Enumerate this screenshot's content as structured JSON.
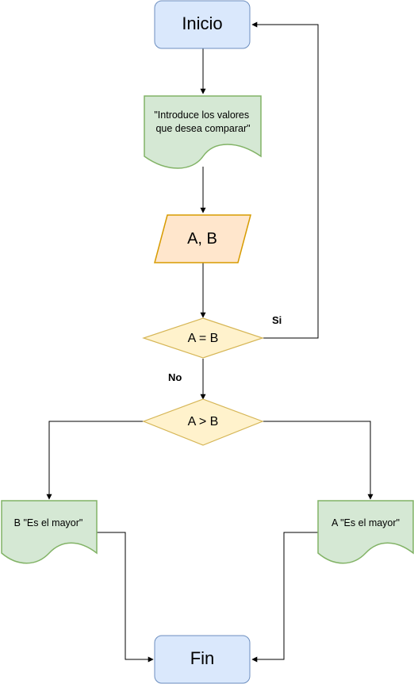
{
  "flowchart": {
    "start": "Inicio",
    "message": [
      "\"Introduce los valores",
      "que desea comparar\""
    ],
    "input": "A, B",
    "decision_equal": "A = B",
    "label_yes": "Si",
    "label_no": "No",
    "decision_greater": "A > B",
    "output_b": "B \"Es el mayor\"",
    "output_a": "A \"Es el mayor\"",
    "end": "Fin"
  },
  "colors": {
    "terminal_fill": "#dae8fc",
    "terminal_stroke": "#6c8ebf",
    "document_fill": "#d5e8d4",
    "document_stroke": "#82b366",
    "input_fill": "#ffe6cc",
    "input_stroke": "#d79b00",
    "decision_fill": "#fff2cc",
    "decision_stroke": "#d6b656"
  }
}
